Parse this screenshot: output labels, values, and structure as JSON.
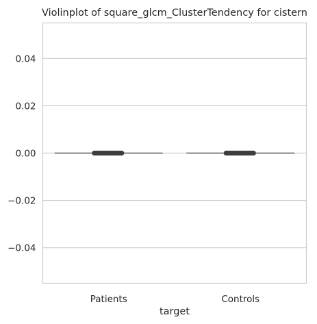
{
  "chart_data": {
    "type": "violin",
    "title": "Violinplot of square_glcm_ClusterTendency for cistern",
    "xlabel": "target",
    "ylabel": "",
    "categories": [
      "Patients",
      "Controls"
    ],
    "ylim": [
      -0.055,
      0.055
    ],
    "yticks": [
      -0.04,
      -0.02,
      0.0,
      0.02,
      0.04
    ],
    "ytick_labels": [
      "−0.04",
      "−0.02",
      "0.00",
      "0.02",
      "0.04"
    ],
    "values": [
      0.0,
      0.0
    ],
    "grid": "horizontal",
    "colors": {
      "grid": "#cccccc",
      "spine": "#cccccc",
      "line": "#595959",
      "points": "#3d3d3d"
    }
  }
}
